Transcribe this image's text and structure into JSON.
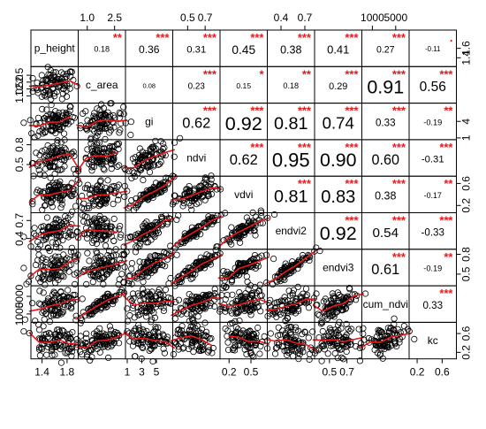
{
  "chart_data": {
    "type": "scatter-matrix",
    "title": "",
    "variables": [
      "p_height",
      "c_area",
      "gi",
      "ndvi",
      "vdvi",
      "endvi2",
      "endvi3",
      "cum_ndvi",
      "kc"
    ],
    "ranges": [
      [
        1.25,
        1.95
      ],
      [
        0.6,
        3.0
      ],
      [
        1,
        7
      ],
      [
        0.35,
        0.85
      ],
      [
        0.1,
        0.7
      ],
      [
        0.25,
        0.8
      ],
      [
        0.35,
        0.85
      ],
      [
        -500,
        7000
      ],
      [
        0.1,
        0.8
      ]
    ],
    "axis_ticks": {
      "top": [
        {
          "col": 1,
          "labels": [
            "1.0",
            "2.5"
          ],
          "values": [
            1.0,
            2.5
          ]
        },
        {
          "col": 3,
          "labels": [
            "0.5",
            "0.7"
          ],
          "values": [
            0.5,
            0.7
          ]
        },
        {
          "col": 5,
          "labels": [
            "0.4",
            "0.7"
          ],
          "values": [
            0.4,
            0.7
          ]
        },
        {
          "col": 7,
          "labels": [
            "1000",
            "5000"
          ],
          "values": [
            1000,
            5000
          ]
        }
      ],
      "bottom": [
        {
          "col": 0,
          "labels": [
            "1.4",
            "1.8"
          ],
          "values": [
            1.4,
            1.8
          ]
        },
        {
          "col": 2,
          "labels": [
            "1",
            "3",
            "5"
          ],
          "values": [
            1,
            3,
            5
          ]
        },
        {
          "col": 4,
          "labels": [
            "0.2",
            "0.5"
          ],
          "values": [
            0.2,
            0.5
          ]
        },
        {
          "col": 6,
          "labels": [
            "0.5",
            "0.7"
          ],
          "values": [
            0.5,
            0.7
          ]
        },
        {
          "col": 8,
          "labels": [
            "0.2",
            "0.6"
          ],
          "values": [
            0.2,
            0.6
          ]
        }
      ],
      "left": [
        {
          "row": 1,
          "labels": [
            "1.0",
            "1.5",
            "2.0",
            "2.5"
          ],
          "values": [
            1.0,
            1.5,
            2.0,
            2.5
          ]
        },
        {
          "row": 3,
          "labels": [
            "0.5",
            "0.8"
          ],
          "values": [
            0.5,
            0.8
          ]
        },
        {
          "row": 5,
          "labels": [
            "0.4",
            "0.7"
          ],
          "values": [
            0.4,
            0.7
          ]
        },
        {
          "row": 7,
          "labels": [
            "1000",
            "5000"
          ],
          "values": [
            1000,
            5000
          ]
        }
      ],
      "right": [
        {
          "row": 0,
          "labels": [
            "1.4",
            "1.6"
          ],
          "values": [
            1.4,
            1.6
          ]
        },
        {
          "row": 2,
          "labels": [
            "1",
            "4"
          ],
          "values": [
            1,
            4
          ]
        },
        {
          "row": 4,
          "labels": [
            "0.2",
            "0.6"
          ],
          "values": [
            0.2,
            0.6
          ]
        },
        {
          "row": 6,
          "labels": [
            "0.5",
            "0.8"
          ],
          "values": [
            0.5,
            0.8
          ]
        },
        {
          "row": 8,
          "labels": [
            "0.2",
            "0.6"
          ],
          "values": [
            0.2,
            0.6
          ]
        }
      ]
    },
    "correlations": [
      {
        "row": 0,
        "col": 1,
        "value": "0.18",
        "stars": "**"
      },
      {
        "row": 0,
        "col": 2,
        "value": "0.36",
        "stars": "***"
      },
      {
        "row": 0,
        "col": 3,
        "value": "0.31",
        "stars": "***"
      },
      {
        "row": 0,
        "col": 4,
        "value": "0.45",
        "stars": "***"
      },
      {
        "row": 0,
        "col": 5,
        "value": "0.38",
        "stars": "***"
      },
      {
        "row": 0,
        "col": 6,
        "value": "0.41",
        "stars": "***"
      },
      {
        "row": 0,
        "col": 7,
        "value": "0.27",
        "stars": "***"
      },
      {
        "row": 0,
        "col": 8,
        "value": "-0.11",
        "stars": "."
      },
      {
        "row": 1,
        "col": 2,
        "value": "0.08",
        "stars": ""
      },
      {
        "row": 1,
        "col": 3,
        "value": "0.23",
        "stars": "***"
      },
      {
        "row": 1,
        "col": 4,
        "value": "0.15",
        "stars": "*"
      },
      {
        "row": 1,
        "col": 5,
        "value": "0.18",
        "stars": "**"
      },
      {
        "row": 1,
        "col": 6,
        "value": "0.29",
        "stars": "***"
      },
      {
        "row": 1,
        "col": 7,
        "value": "0.91",
        "stars": "***"
      },
      {
        "row": 1,
        "col": 8,
        "value": "0.56",
        "stars": "***"
      },
      {
        "row": 2,
        "col": 3,
        "value": "0.62",
        "stars": "***"
      },
      {
        "row": 2,
        "col": 4,
        "value": "0.92",
        "stars": "***"
      },
      {
        "row": 2,
        "col": 5,
        "value": "0.81",
        "stars": "***"
      },
      {
        "row": 2,
        "col": 6,
        "value": "0.74",
        "stars": "***"
      },
      {
        "row": 2,
        "col": 7,
        "value": "0.33",
        "stars": "***"
      },
      {
        "row": 2,
        "col": 8,
        "value": "-0.19",
        "stars": "**"
      },
      {
        "row": 3,
        "col": 4,
        "value": "0.62",
        "stars": "***"
      },
      {
        "row": 3,
        "col": 5,
        "value": "0.95",
        "stars": "***"
      },
      {
        "row": 3,
        "col": 6,
        "value": "0.90",
        "stars": "***"
      },
      {
        "row": 3,
        "col": 7,
        "value": "0.60",
        "stars": "***"
      },
      {
        "row": 3,
        "col": 8,
        "value": "-0.31",
        "stars": "***"
      },
      {
        "row": 4,
        "col": 5,
        "value": "0.81",
        "stars": "***"
      },
      {
        "row": 4,
        "col": 6,
        "value": "0.83",
        "stars": "***"
      },
      {
        "row": 4,
        "col": 7,
        "value": "0.38",
        "stars": "***"
      },
      {
        "row": 4,
        "col": 8,
        "value": "-0.17",
        "stars": "**"
      },
      {
        "row": 5,
        "col": 6,
        "value": "0.92",
        "stars": "***"
      },
      {
        "row": 5,
        "col": 7,
        "value": "0.54",
        "stars": "***"
      },
      {
        "row": 5,
        "col": 8,
        "value": "-0.33",
        "stars": "***"
      },
      {
        "row": 6,
        "col": 7,
        "value": "0.61",
        "stars": "***"
      },
      {
        "row": 6,
        "col": 8,
        "value": "-0.19",
        "stars": "**"
      },
      {
        "row": 7,
        "col": 8,
        "value": "0.33",
        "stars": "***"
      }
    ],
    "colors": {
      "points": "#000000",
      "smooth": "#e8191d",
      "stars": "#e8191d",
      "frame": "#000000"
    }
  }
}
